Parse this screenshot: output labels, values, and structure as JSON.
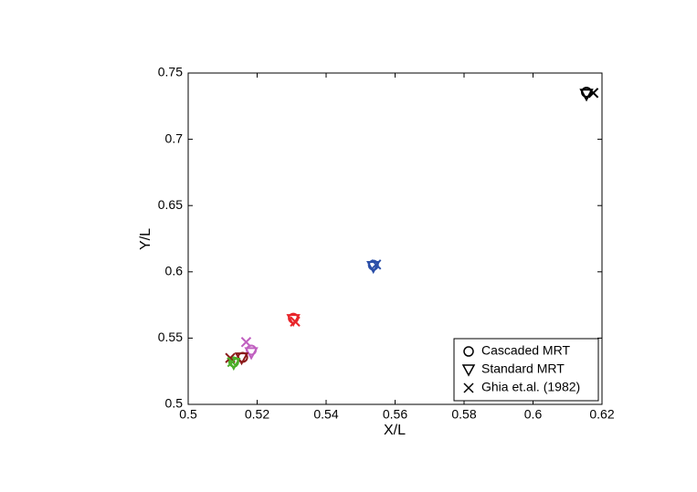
{
  "chart_data": {
    "type": "scatter",
    "xlabel": "X/L",
    "ylabel": "Y/L",
    "xlim": [
      0.5,
      0.62
    ],
    "xticks": [
      0.5,
      0.52,
      0.54,
      0.56,
      0.58,
      0.6,
      0.62
    ],
    "ylim": [
      0.5,
      0.75
    ],
    "yticks": [
      0.5,
      0.55,
      0.6,
      0.65,
      0.7,
      0.75
    ],
    "legend": "lower right",
    "series": [
      {
        "name": "Cascaded MRT",
        "marker": "circle",
        "colors": [
          "#000000",
          "#2b4fa8",
          "#e8252a",
          "#c060c0",
          "#8b1a1a",
          "#4caf2a"
        ],
        "x": [
          0.6155,
          0.5537,
          0.5305,
          0.5183,
          0.5158,
          0.5132
        ],
        "values": [
          0.7355,
          0.605,
          0.565,
          0.541,
          0.5355,
          0.532
        ]
      },
      {
        "name": "Standard MRT",
        "marker": "triangle",
        "colors": [
          "#000000",
          "#2b4fa8",
          "#e8252a",
          "#c060c0",
          "#8b1a1a",
          "#4caf2a"
        ],
        "x": [
          0.6155,
          0.5537,
          0.5305,
          0.5183,
          0.5155,
          0.5132
        ],
        "values": [
          0.734,
          0.604,
          0.564,
          0.539,
          0.535,
          0.531
        ]
      },
      {
        "name": "Ghia et.al. (1982)",
        "marker": "x",
        "colors": [
          "#000000",
          "#2b4fa8",
          "#e8252a",
          "#c060c0",
          "#8b1a1a",
          "#4caf2a"
        ],
        "x": [
          0.6175,
          0.5545,
          0.531,
          0.5168,
          0.5122,
          0.5128
        ],
        "values": [
          0.735,
          0.6055,
          0.5625,
          0.547,
          0.535,
          0.532
        ]
      }
    ]
  }
}
